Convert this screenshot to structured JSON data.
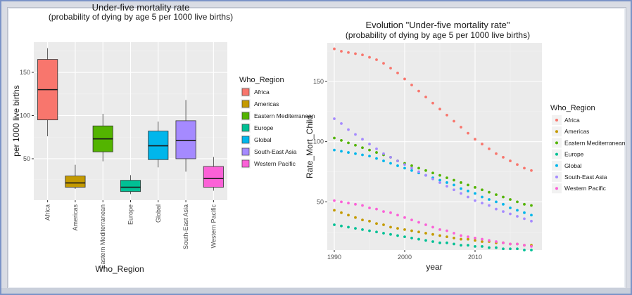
{
  "colors": {
    "panel_bg": "#ebebeb",
    "grid_major": "#ffffff",
    "grid_minor": "#f3f3f3",
    "frame": "#7b93c7",
    "text": "#1a1a1a",
    "tick_text": "#4d4d4d"
  },
  "chart_data": [
    {
      "type": "boxplot",
      "title": "Under-five mortality rate",
      "subtitle": "(probability of dying by age 5 per 1000 live births)",
      "xlabel": "Who_Region",
      "ylabel": "per 1000 live births",
      "ylim": [
        2,
        185
      ],
      "yticks": [
        50,
        100,
        150
      ],
      "grid": true,
      "legend_title": "Who_Region",
      "legend_position": "right",
      "categories": [
        "Africa",
        "Americas",
        "Eastern Mediterranean",
        "Europe",
        "Global",
        "South-East Asia",
        "Western Pacific"
      ],
      "colors": [
        "#f8766d",
        "#c49a00",
        "#53b400",
        "#00c094",
        "#00b6eb",
        "#a58aff",
        "#fb61d7"
      ],
      "boxes": [
        {
          "min": 76,
          "q1": 95,
          "median": 130,
          "q3": 165,
          "max": 178
        },
        {
          "min": 15,
          "q1": 17,
          "median": 22,
          "q3": 30,
          "max": 43
        },
        {
          "min": 47,
          "q1": 58,
          "median": 73,
          "q3": 88,
          "max": 102
        },
        {
          "min": 9,
          "q1": 12,
          "median": 17,
          "q3": 25,
          "max": 31
        },
        {
          "min": 40,
          "q1": 49,
          "median": 65,
          "q3": 82,
          "max": 93
        },
        {
          "min": 35,
          "q1": 50,
          "median": 71,
          "q3": 94,
          "max": 118
        },
        {
          "min": 13,
          "q1": 17,
          "median": 27,
          "q3": 41,
          "max": 52
        }
      ]
    },
    {
      "type": "scatter",
      "title": "Evolution \"Under-five mortality rate\"",
      "subtitle": "(probability of dying by age 5 per 1000 live births)",
      "xlabel": "year",
      "ylabel": "Rate_Mort_Child",
      "xlim": [
        1989,
        2019.5
      ],
      "ylim": [
        10,
        182
      ],
      "xticks": [
        1990,
        2000,
        2010
      ],
      "yticks": [
        50,
        100,
        150
      ],
      "grid": true,
      "legend_title": "Who_Region",
      "legend_position": "right",
      "x": [
        1990,
        1991,
        1992,
        1993,
        1994,
        1995,
        1996,
        1997,
        1998,
        1999,
        2000,
        2001,
        2002,
        2003,
        2004,
        2005,
        2006,
        2007,
        2008,
        2009,
        2010,
        2011,
        2012,
        2013,
        2014,
        2015,
        2016,
        2017,
        2018
      ],
      "series": [
        {
          "name": "Africa",
          "color": "#f8766d",
          "values": [
            177,
            175,
            174,
            173,
            172,
            170,
            168,
            165,
            161,
            157,
            152,
            147,
            142,
            137,
            132,
            127,
            122,
            117,
            112,
            107,
            102,
            98,
            94,
            90,
            87,
            84,
            81,
            78,
            76
          ]
        },
        {
          "name": "Americas",
          "color": "#c49a00",
          "values": [
            43,
            41,
            39,
            37,
            35,
            34,
            32,
            31,
            29,
            28,
            27,
            26,
            25,
            24,
            23,
            22,
            21,
            20,
            19,
            19,
            18,
            17,
            17,
            16,
            16,
            15,
            15,
            14,
            14
          ]
        },
        {
          "name": "Eastern Mediterranean",
          "color": "#53b400",
          "values": [
            103,
            101,
            99,
            97,
            95,
            93,
            91,
            89,
            87,
            84,
            82,
            80,
            78,
            76,
            74,
            72,
            70,
            68,
            66,
            64,
            62,
            60,
            58,
            56,
            54,
            52,
            50,
            48,
            47
          ]
        },
        {
          "name": "Europe",
          "color": "#00c094",
          "values": [
            31,
            30,
            29,
            28,
            27,
            26,
            25,
            24,
            23,
            22,
            21,
            20,
            19,
            18,
            17,
            16,
            16,
            15,
            14,
            14,
            13,
            13,
            12,
            12,
            11,
            11,
            11,
            10,
            10
          ]
        },
        {
          "name": "Global",
          "color": "#00b6eb",
          "values": [
            93,
            92,
            91,
            90,
            89,
            88,
            86,
            84,
            82,
            80,
            78,
            76,
            74,
            72,
            70,
            68,
            66,
            64,
            61,
            59,
            57,
            54,
            52,
            50,
            48,
            45,
            43,
            41,
            39
          ]
        },
        {
          "name": "South-East Asia",
          "color": "#a58aff",
          "values": [
            119,
            115,
            110,
            106,
            102,
            98,
            94,
            90,
            87,
            84,
            81,
            78,
            75,
            72,
            69,
            66,
            63,
            60,
            57,
            54,
            51,
            49,
            47,
            44,
            42,
            40,
            38,
            36,
            34
          ]
        },
        {
          "name": "Western Pacific",
          "color": "#fb61d7",
          "values": [
            51,
            50,
            49,
            48,
            47,
            45,
            44,
            42,
            41,
            39,
            37,
            35,
            33,
            31,
            29,
            27,
            26,
            24,
            22,
            21,
            20,
            19,
            18,
            17,
            16,
            15,
            15,
            14,
            13
          ]
        }
      ]
    }
  ]
}
